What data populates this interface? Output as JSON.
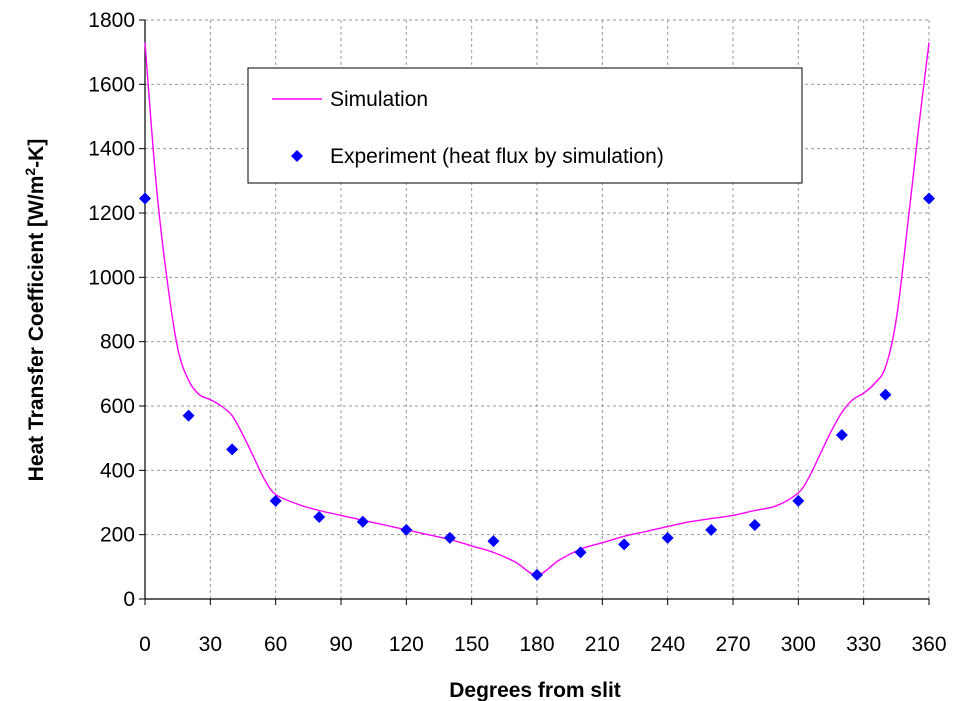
{
  "chart_data": {
    "type": "line",
    "xlabel": "Degrees from slit",
    "ylabel_main": "Heat Transfer Coefficient [W/m",
    "ylabel_sup": "2",
    "ylabel_end": "-K]",
    "xlim": [
      0,
      360
    ],
    "ylim": [
      0,
      1800
    ],
    "xticks": [
      0,
      30,
      60,
      90,
      120,
      150,
      180,
      210,
      240,
      270,
      300,
      330,
      360
    ],
    "yticks": [
      0,
      200,
      400,
      600,
      800,
      1000,
      1200,
      1400,
      1600,
      1800
    ],
    "grid": true,
    "legend_position": "top-center",
    "series": [
      {
        "name": "Simulation",
        "kind": "line",
        "color": "#ff00ff",
        "x": [
          0,
          5,
          10,
          15,
          20,
          25,
          30,
          35,
          40,
          45,
          50,
          55,
          60,
          70,
          80,
          90,
          100,
          110,
          120,
          130,
          140,
          150,
          160,
          170,
          180,
          190,
          200,
          210,
          220,
          230,
          240,
          250,
          260,
          270,
          280,
          290,
          300,
          305,
          310,
          315,
          320,
          325,
          330,
          335,
          340,
          345,
          350,
          355,
          360
        ],
        "y": [
          1730,
          1300,
          1000,
          780,
          680,
          635,
          620,
          600,
          570,
          510,
          440,
          370,
          325,
          295,
          275,
          260,
          245,
          230,
          215,
          200,
          185,
          165,
          145,
          115,
          75,
          120,
          155,
          175,
          195,
          210,
          225,
          240,
          250,
          260,
          275,
          290,
          330,
          380,
          450,
          520,
          580,
          620,
          640,
          670,
          720,
          870,
          1150,
          1450,
          1730
        ]
      },
      {
        "name": "Experiment (heat flux by simulation)",
        "kind": "scatter",
        "color": "#0000ff",
        "x": [
          0,
          20,
          40,
          60,
          80,
          100,
          120,
          140,
          160,
          180,
          200,
          220,
          240,
          260,
          280,
          300,
          320,
          340,
          360
        ],
        "y": [
          1245,
          570,
          465,
          305,
          255,
          240,
          215,
          190,
          180,
          75,
          145,
          170,
          190,
          215,
          230,
          305,
          510,
          635,
          1245
        ]
      }
    ]
  }
}
